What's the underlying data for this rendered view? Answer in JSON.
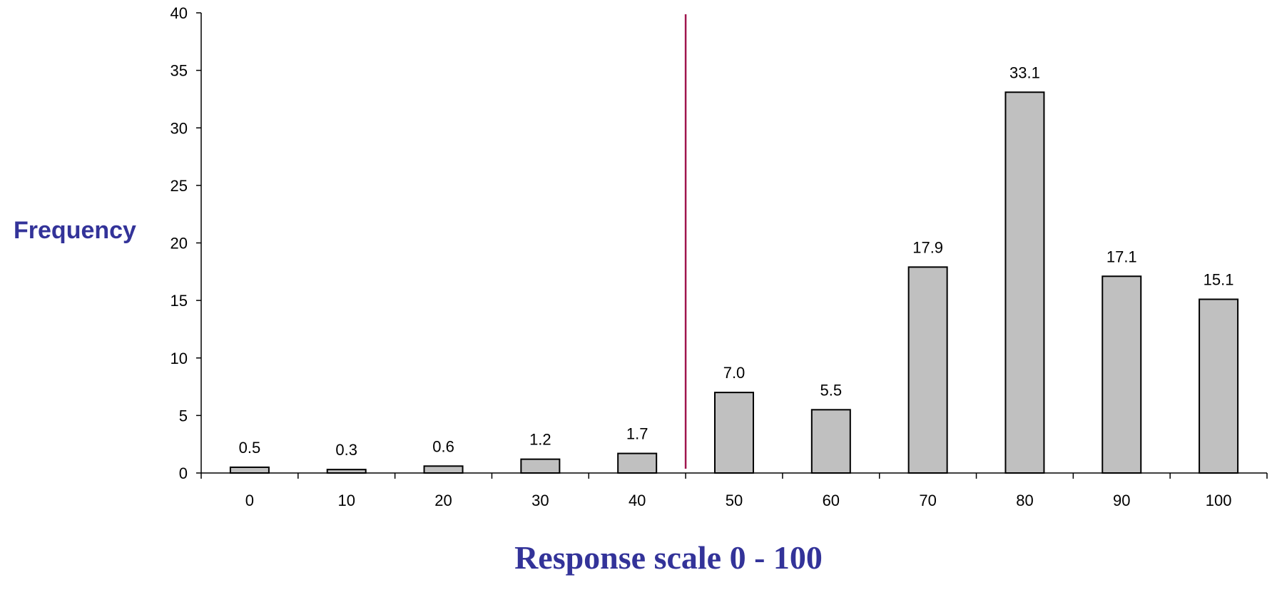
{
  "chart_data": {
    "type": "bar",
    "categories": [
      "0",
      "10",
      "20",
      "30",
      "40",
      "50",
      "60",
      "70",
      "80",
      "90",
      "100"
    ],
    "values": [
      0.5,
      0.3,
      0.6,
      1.2,
      1.7,
      7.0,
      5.5,
      17.9,
      33.1,
      17.1,
      15.1
    ],
    "value_labels": [
      "0.5",
      "0.3",
      "0.6",
      "1.2",
      "1.7",
      "7.0",
      "5.5",
      "17.9",
      "33.1",
      "17.1",
      "15.1"
    ],
    "ylabel": "Frequency",
    "xlabel": "Response scale 0 - 100",
    "ylim": [
      0,
      40
    ],
    "yticks": [
      0,
      5,
      10,
      15,
      20,
      25,
      30,
      35,
      40
    ],
    "grid": false,
    "reference_line_between": [
      "40",
      "50"
    ],
    "colors": {
      "bar_fill": "#c0c0c0",
      "bar_stroke": "#000000",
      "axis": "#000000",
      "label": "#333399",
      "reference_line": "#a0164e"
    }
  }
}
